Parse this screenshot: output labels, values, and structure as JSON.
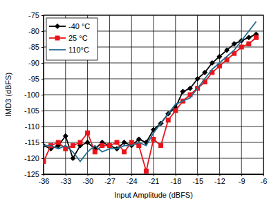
{
  "chart_data": {
    "type": "line",
    "x_label": "Input Amplitude (dBFS)",
    "y_label": "IMD3 (dBFS)",
    "x": [
      -36,
      -35,
      -34,
      -33,
      -32,
      -31,
      -30,
      -29,
      -28,
      -27,
      -26,
      -25,
      -24,
      -23,
      -22,
      -21,
      -20,
      -19,
      -18,
      -17,
      -16,
      -15,
      -14,
      -13,
      -12,
      -11,
      -10,
      -9,
      -8,
      -7
    ],
    "series": [
      {
        "name": "-40 °C",
        "color": "#000000",
        "marker": "diamond",
        "line_style": "solid",
        "values": [
          -116,
          -117,
          -116,
          -113,
          -120,
          -116,
          -115,
          -117,
          -115,
          -116,
          -117,
          -115,
          -116,
          -114,
          -115,
          -111,
          -109,
          -106,
          -104,
          -99,
          -98,
          -95,
          -93,
          -90,
          -88,
          -86,
          -84,
          -83,
          -82,
          -81
        ]
      },
      {
        "name": "25 °C",
        "color": "#e8141a",
        "marker": "square",
        "line_style": "solid",
        "values": [
          -121,
          -116,
          -115,
          -117,
          -116,
          -115,
          -112,
          -118,
          -116,
          -116,
          -115,
          -118,
          -115,
          -116,
          -124,
          -114,
          -116,
          -108,
          -105,
          -102,
          -100,
          -98,
          -96,
          -93,
          -91,
          -89,
          -87,
          -85,
          -84,
          -82
        ]
      },
      {
        "name": "110°C",
        "color": "#236b8e",
        "marker": "none",
        "line_style": "solid",
        "values": [
          -116,
          -116,
          -117,
          -116,
          -118,
          -121,
          -118,
          -116,
          -118,
          -117,
          -117,
          -116,
          -116,
          -115,
          -116,
          -112,
          -109,
          -106,
          -103,
          -102,
          -101,
          -98,
          -95,
          -92,
          -90,
          -88,
          -86,
          -83,
          -80,
          -77
        ]
      }
    ],
    "xlim": [
      -36,
      -6
    ],
    "xticks": [
      -36,
      -33,
      -30,
      -27,
      -24,
      -21,
      -18,
      -15,
      -12,
      -9,
      -6
    ],
    "ylim": [
      -125,
      -75
    ],
    "yticks": [
      -125,
      -120,
      -115,
      -110,
      -105,
      -100,
      -95,
      -90,
      -85,
      -80,
      -75
    ],
    "grid": true,
    "legend": "top-left"
  }
}
